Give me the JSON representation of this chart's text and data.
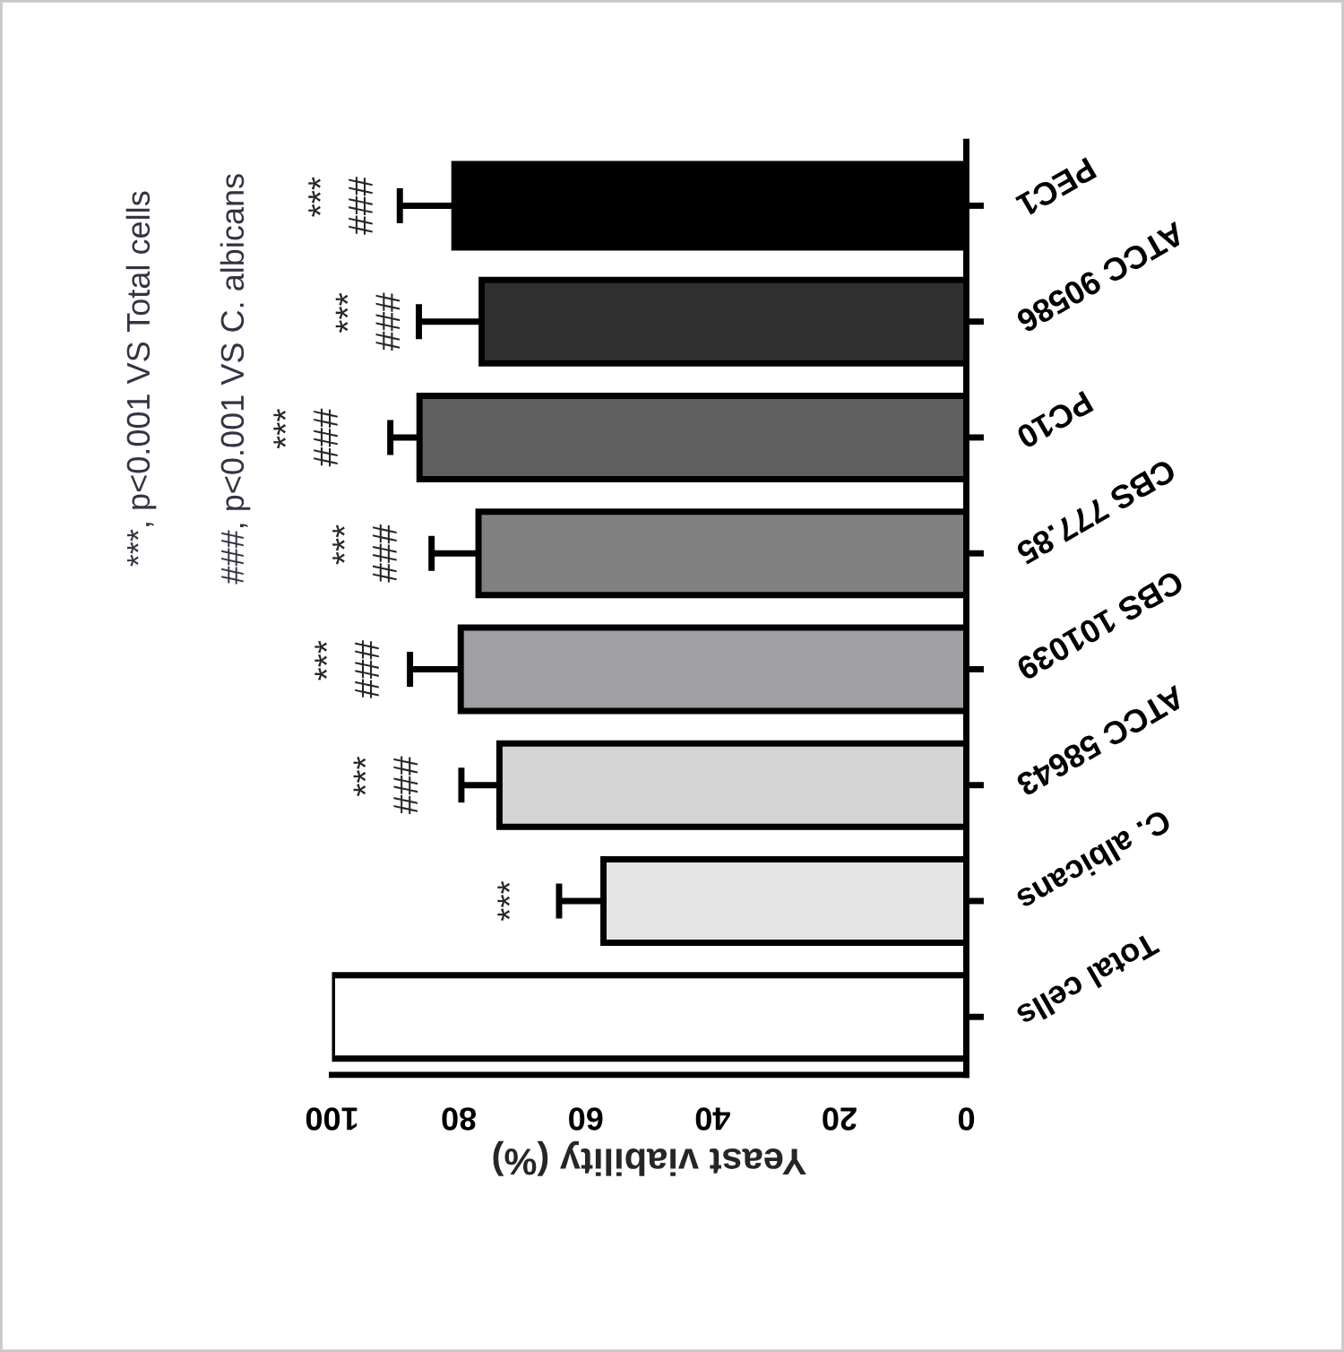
{
  "chart_data": {
    "type": "bar",
    "orientation": "horizontal",
    "categories": [
      "PEC1",
      "ATCC 90586",
      "PC10",
      "CBS 777.85",
      "CBS 101039",
      "ATCC 58643",
      "C. albicans",
      "Total cells"
    ],
    "values": [
      80.7,
      76.4,
      86.2,
      76.9,
      79.7,
      73.6,
      57.2,
      100
    ],
    "errors": [
      8.6,
      9.9,
      4.6,
      7.4,
      8,
      6,
      7,
      null
    ],
    "colors": [
      "#000000",
      "#303030",
      "#5f5f5f",
      "#808080",
      "#a0a0a4",
      "#d4d4d4",
      "#e4e4e4",
      "#ffffff"
    ],
    "xlabel": "Yeast viability (%)",
    "xlim": [
      100,
      0
    ],
    "xticks": [
      0,
      20,
      40,
      60,
      80,
      100
    ],
    "annotations": [
      "***, p<0.001 VS Total cells",
      "###, p<0.001 VS C. albicans",
      {
        "text": "***\n###",
        "x": 80.7,
        "y": "PEC1"
      },
      {
        "text": "***\n###",
        "x": 76.4,
        "y": "ATCC 90586"
      },
      {
        "text": "***\n###",
        "x": 86.2,
        "y": "PC10"
      },
      {
        "text": "***\n###",
        "x": 76.9,
        "y": "CBS 777.85"
      },
      {
        "text": "***\n###",
        "x": 79.7,
        "y": "CBS 101039"
      },
      {
        "text": "***\n###",
        "x": 73.6,
        "y": "ATCC 58643"
      },
      {
        "text": "***",
        "x": 57.2,
        "y": "C. albicans"
      }
    ]
  }
}
